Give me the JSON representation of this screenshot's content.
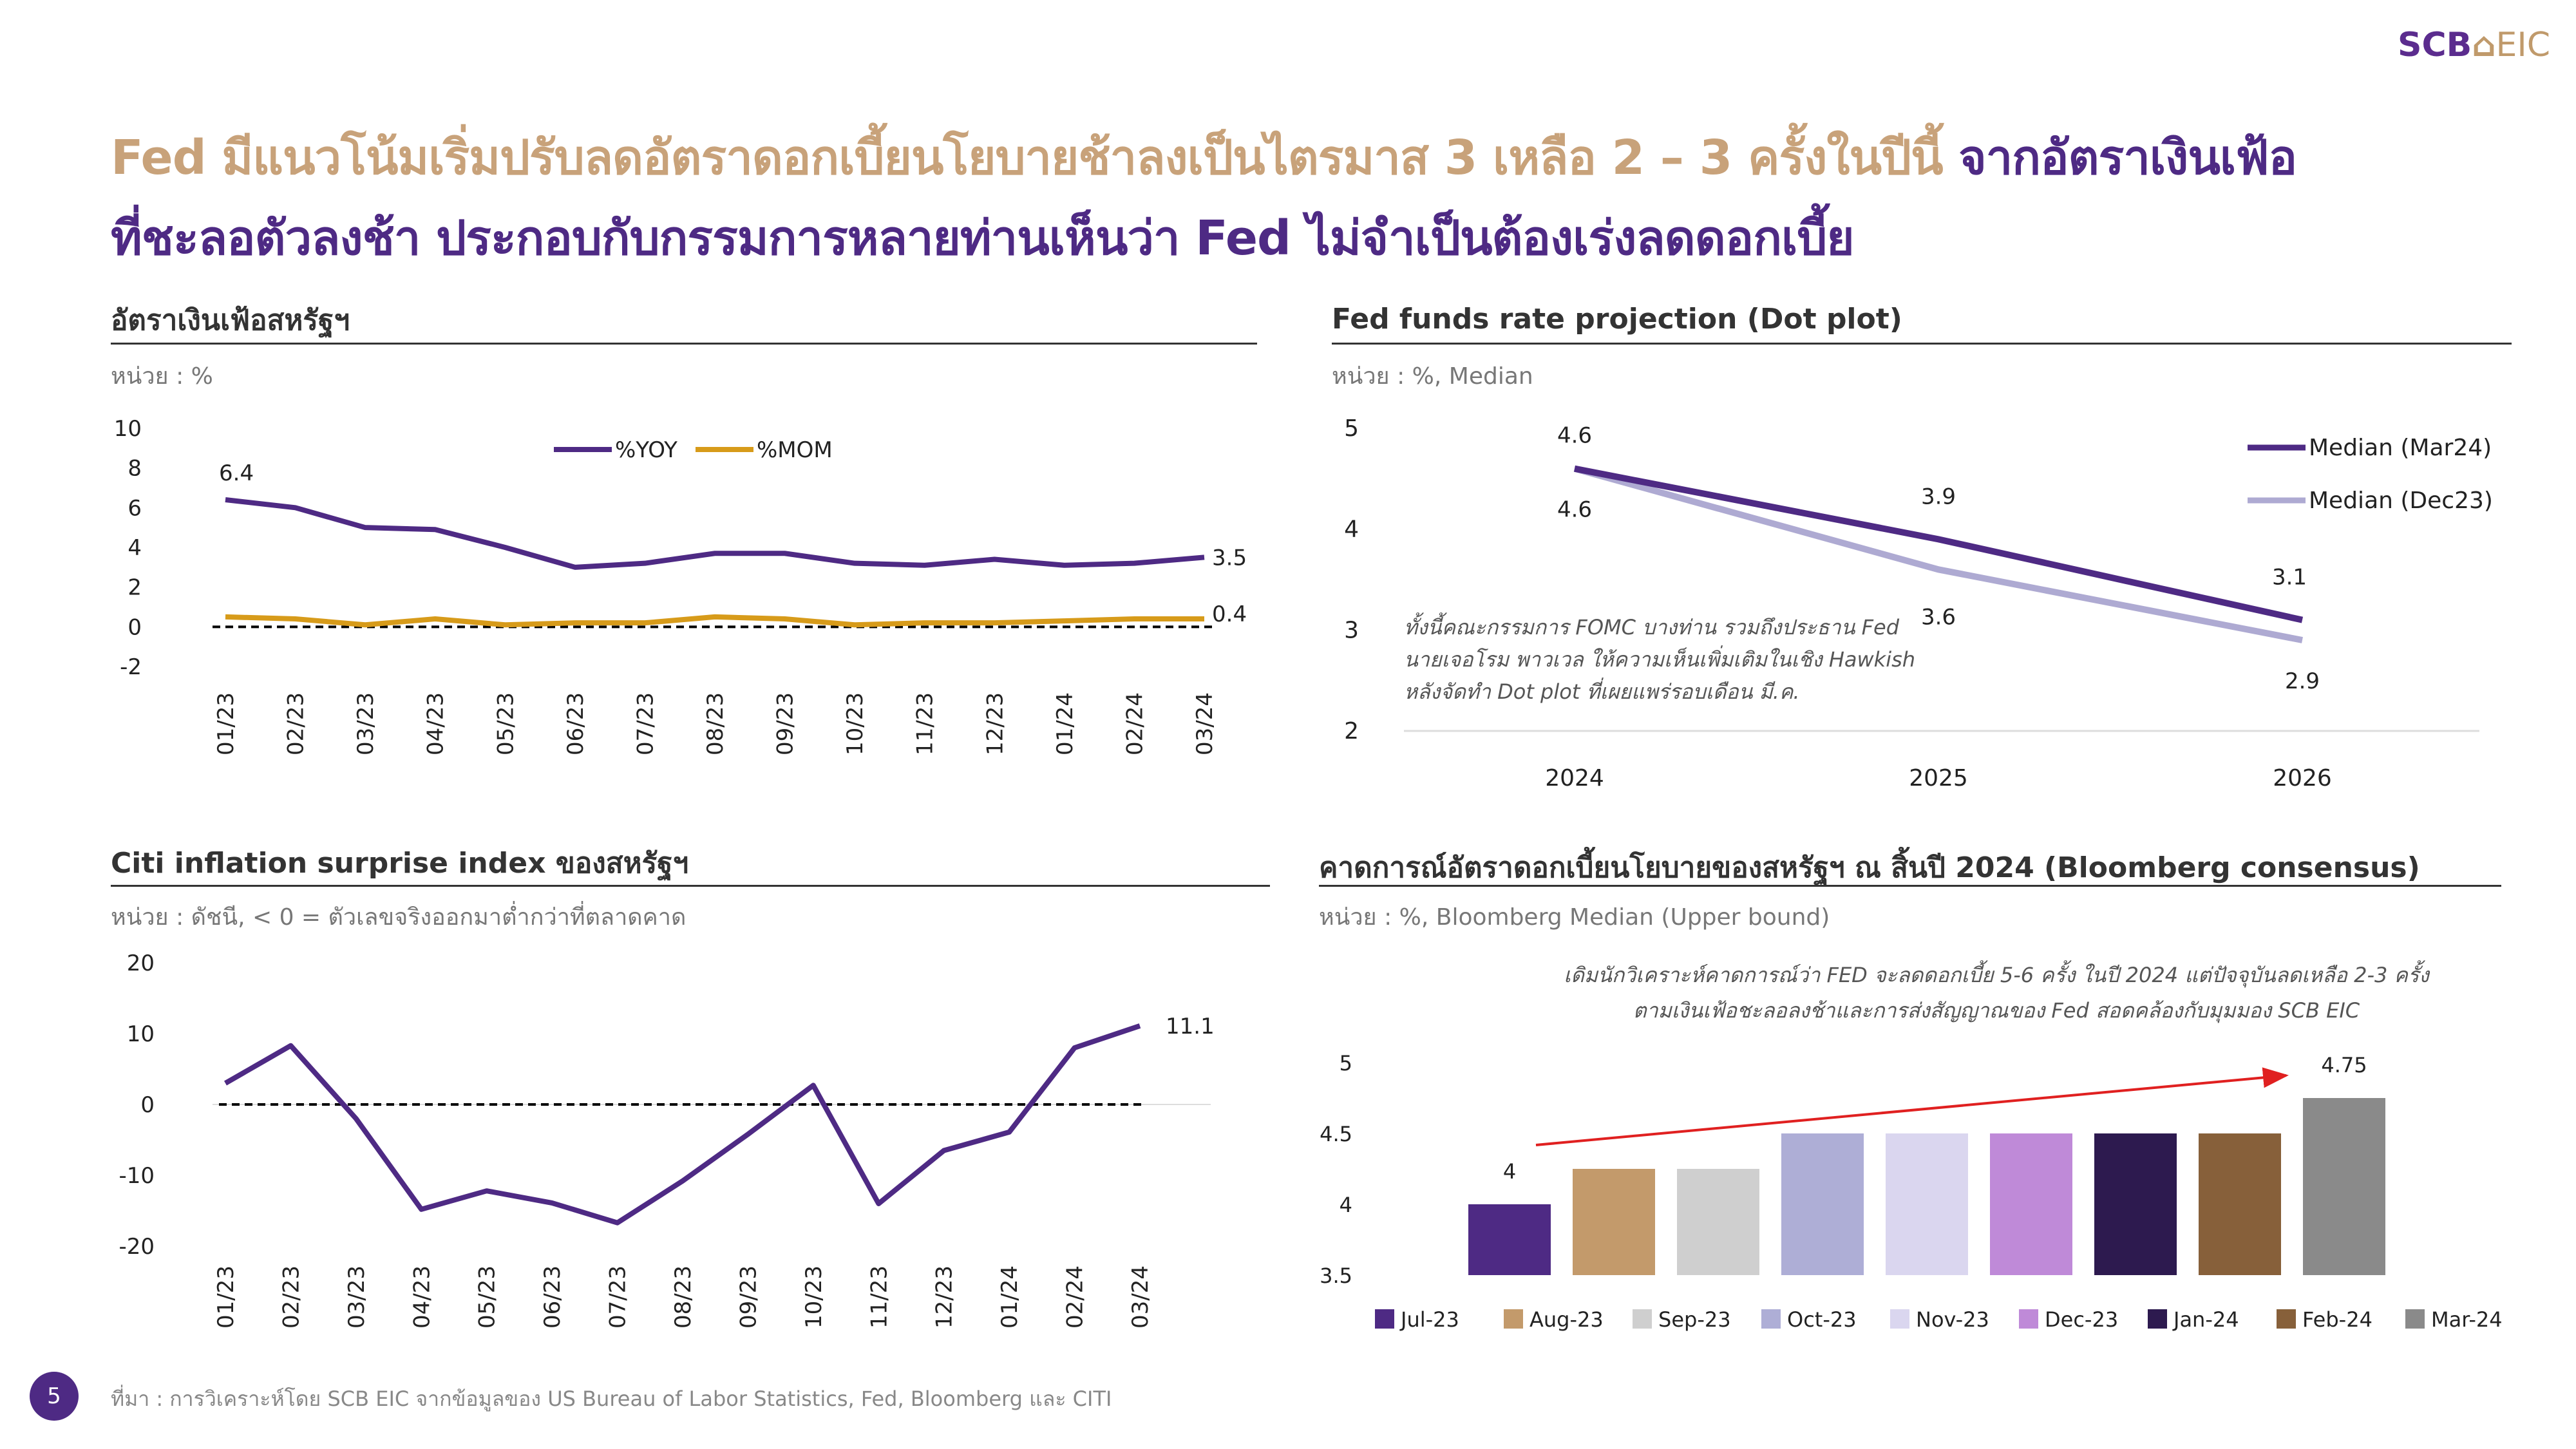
{
  "logo": {
    "left": "SCB",
    "right": "EIC"
  },
  "headline": {
    "line1_gold": "Fed มีแนวโน้มเริ่มปรับลดอัตราดอกเบี้ยนโยบายช้าลงเป็นไตรมาส 3 เหลือ 2 – 3 ครั้งในปีนี้",
    "line1_purple": "จากอัตราเงินเฟ้อ",
    "line2": "ที่ชะลอตัวลงช้า ประกอบกับกรรมการหลายท่านเห็นว่า Fed ไม่จำเป็นต้องเร่งลดดอกเบี้ย"
  },
  "footer": {
    "page": "5",
    "source": "ที่มา : การวิเคราะห์โดย SCB EIC จากข้อมูลของ US Bureau of Labor Statistics, Fed, Bloomberg และ CITI"
  },
  "colors": {
    "purple": "#4e2a84",
    "gold": "#c8a27a",
    "lavender": "#aeaad2",
    "orange": "#d79b1a"
  },
  "chart_data": [
    {
      "type": "line",
      "title": "อัตราเงินเฟ้อสหรัฐฯ",
      "unit": "หน่วย : %",
      "x": [
        "01/23",
        "02/23",
        "03/23",
        "04/23",
        "05/23",
        "06/23",
        "07/23",
        "08/23",
        "09/23",
        "10/23",
        "11/23",
        "12/23",
        "01/24",
        "02/24",
        "03/24"
      ],
      "ylim": [
        -2,
        10
      ],
      "yticks": [
        "10",
        "8",
        "6",
        "4",
        "2",
        "0",
        "-2"
      ],
      "legend_position": "top-center",
      "series": [
        {
          "name": "%YOY",
          "color": "#4e2a84",
          "values": [
            6.4,
            6.0,
            5.0,
            4.9,
            4.0,
            3.0,
            3.2,
            3.7,
            3.7,
            3.2,
            3.1,
            3.4,
            3.1,
            3.2,
            3.5
          ]
        },
        {
          "name": "%MOM",
          "color": "#d79b1a",
          "values": [
            0.5,
            0.4,
            0.1,
            0.4,
            0.1,
            0.2,
            0.2,
            0.5,
            0.4,
            0.1,
            0.2,
            0.2,
            0.3,
            0.4,
            0.4
          ]
        }
      ],
      "labels": {
        "first_yoy": "6.4",
        "last_yoy": "3.5",
        "last_mom": "0.4"
      }
    },
    {
      "type": "line",
      "title": "Fed funds rate projection (Dot plot)",
      "unit": "หน่วย : %, Median",
      "x": [
        "2024",
        "2025",
        "2026"
      ],
      "ylim": [
        2,
        5
      ],
      "yticks": [
        "5",
        "4",
        "3",
        "2"
      ],
      "legend_position": "top-right",
      "series": [
        {
          "name": "Median (Mar24)",
          "color": "#4e2a84",
          "values": [
            4.6,
            3.9,
            3.1
          ]
        },
        {
          "name": "Median (Dec23)",
          "color": "#aeaad2",
          "values": [
            4.6,
            3.6,
            2.9
          ]
        }
      ],
      "labels": {
        "mar": [
          "4.6",
          "3.9",
          "3.1"
        ],
        "dec": [
          "4.6",
          "3.6",
          "2.9"
        ]
      },
      "annotation": [
        "ทั้งนี้คณะกรรมการ FOMC บางท่าน รวมถึงประธาน Fed",
        "นายเจอโรม พาวเวล ให้ความเห็นเพิ่มเติมในเชิง Hawkish",
        "หลังจัดทำ Dot plot ที่เผยแพร่รอบเดือน มี.ค."
      ]
    },
    {
      "type": "line",
      "title": "Citi inflation surprise index ของสหรัฐฯ",
      "unit": "หน่วย : ดัชนี, < 0 = ตัวเลขจริงออกมาต่ำกว่าที่ตลาดคาด",
      "x": [
        "01/23",
        "02/23",
        "03/23",
        "04/23",
        "05/23",
        "06/23",
        "07/23",
        "08/23",
        "09/23",
        "10/23",
        "11/23",
        "12/23",
        "01/24",
        "02/24",
        "03/24"
      ],
      "ylim": [
        -20,
        20
      ],
      "yticks": [
        "20",
        "10",
        "0",
        "-10",
        "-20"
      ],
      "series": [
        {
          "name": "Citi inflation surprise index",
          "color": "#4e2a84",
          "values": [
            3,
            8.3,
            -2,
            -14.8,
            -12.2,
            -13.9,
            -16.7,
            -10.8,
            -4.2,
            2.7,
            -14,
            -6.5,
            -3.9,
            8,
            11.1
          ]
        }
      ],
      "labels": {
        "last": "11.1"
      }
    },
    {
      "type": "bar",
      "title": "คาดการณ์อัตราดอกเบี้ยนโยบายของสหรัฐฯ ณ สิ้นปี 2024 (Bloomberg consensus)",
      "unit": "หน่วย : %, Bloomberg Median (Upper bound)",
      "categories": [
        "Jul-23",
        "Aug-23",
        "Sep-23",
        "Oct-23",
        "Nov-23",
        "Dec-23",
        "Jan-24",
        "Feb-24",
        "Mar-24"
      ],
      "values": [
        4,
        4.25,
        4.25,
        4.5,
        4.5,
        4.5,
        4.5,
        4.5,
        4.75
      ],
      "colors": [
        "#4e2a84",
        "#c39a6b",
        "#cfcfcf",
        "#aeaed6",
        "#dad6ef",
        "#bf8ad8",
        "#2d1a4f",
        "#87603a",
        "#8a8a8a"
      ],
      "ylim": [
        3.5,
        5
      ],
      "yticks": [
        "5",
        "4.5",
        "4",
        "3.5"
      ],
      "legend_position": "bottom",
      "labels": {
        "first": "4",
        "last": "4.75"
      },
      "annotation": [
        "เดิมนักวิเคราะห์คาดการณ์ว่า FED จะลดดอกเบี้ย 5-6 ครั้ง ในปี 2024 แต่ปัจจุบันลดเหลือ 2-3 ครั้ง",
        "ตามเงินเฟ้อชะลอลงช้าและการส่งสัญญาณของ Fed สอดคล้องกับมุมมอง SCB EIC"
      ]
    }
  ]
}
